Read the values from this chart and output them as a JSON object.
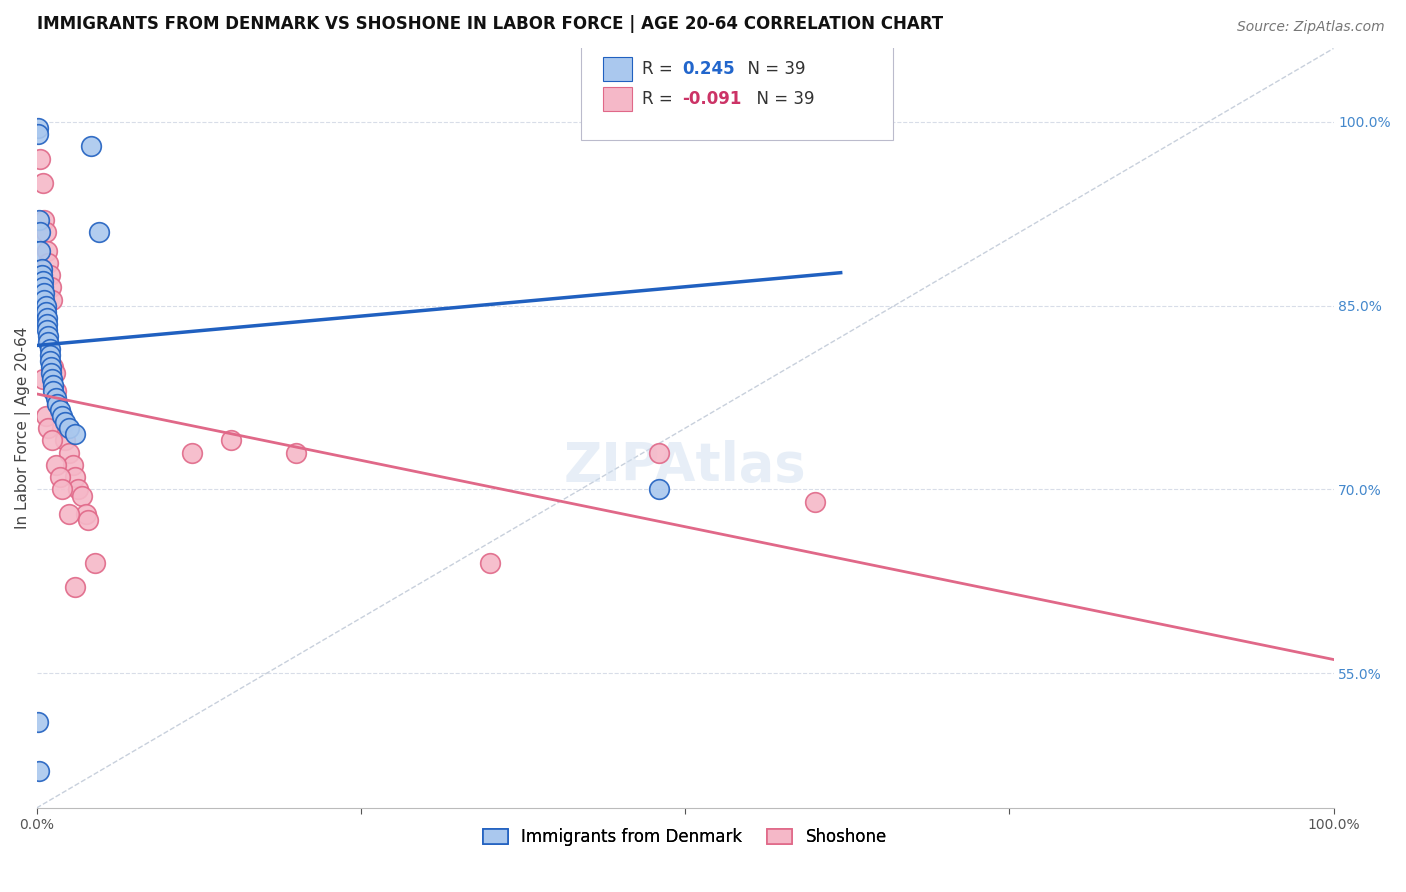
{
  "title": "IMMIGRANTS FROM DENMARK VS SHOSHONE IN LABOR FORCE | AGE 20-64 CORRELATION CHART",
  "source": "Source: ZipAtlas.com",
  "ylabel": "In Labor Force | Age 20-64",
  "xlim": [
    0.0,
    1.0
  ],
  "ylim": [
    0.44,
    1.06
  ],
  "ytick_positions": [
    1.0,
    0.85,
    0.7,
    0.55
  ],
  "ytick_labels": [
    "100.0%",
    "85.0%",
    "70.0%",
    "55.0%"
  ],
  "denmark_R": 0.245,
  "denmark_N": 39,
  "shoshone_R": -0.091,
  "shoshone_N": 39,
  "denmark_color": "#aac8ee",
  "shoshone_color": "#f5b8c8",
  "denmark_line_color": "#2060c0",
  "shoshone_line_color": "#e06888",
  "diagonal_color": "#c8d0dc",
  "background_color": "#ffffff",
  "grid_color": "#d8dde8",
  "denmark_x": [
    0.001,
    0.001,
    0.002,
    0.003,
    0.003,
    0.004,
    0.004,
    0.005,
    0.005,
    0.006,
    0.006,
    0.007,
    0.007,
    0.008,
    0.008,
    0.008,
    0.009,
    0.009,
    0.01,
    0.01,
    0.01,
    0.011,
    0.011,
    0.012,
    0.013,
    0.013,
    0.015,
    0.016,
    0.018,
    0.02,
    0.022,
    0.025,
    0.03,
    0.042,
    0.048,
    0.48,
    0.62,
    0.001,
    0.002
  ],
  "denmark_y": [
    0.995,
    0.99,
    0.92,
    0.91,
    0.895,
    0.88,
    0.875,
    0.87,
    0.865,
    0.86,
    0.855,
    0.85,
    0.845,
    0.84,
    0.835,
    0.83,
    0.825,
    0.82,
    0.815,
    0.81,
    0.805,
    0.8,
    0.795,
    0.79,
    0.785,
    0.78,
    0.775,
    0.77,
    0.765,
    0.76,
    0.755,
    0.75,
    0.745,
    0.98,
    0.91,
    0.7,
    1.0,
    0.51,
    0.47
  ],
  "shoshone_x": [
    0.003,
    0.005,
    0.006,
    0.007,
    0.008,
    0.009,
    0.01,
    0.011,
    0.012,
    0.013,
    0.014,
    0.015,
    0.016,
    0.018,
    0.02,
    0.022,
    0.025,
    0.028,
    0.03,
    0.032,
    0.035,
    0.038,
    0.04,
    0.045,
    0.12,
    0.15,
    0.2,
    0.35,
    0.48,
    0.6,
    0.005,
    0.007,
    0.009,
    0.012,
    0.015,
    0.018,
    0.02,
    0.025,
    0.03
  ],
  "shoshone_y": [
    0.97,
    0.95,
    0.92,
    0.91,
    0.895,
    0.885,
    0.875,
    0.865,
    0.855,
    0.8,
    0.795,
    0.78,
    0.77,
    0.76,
    0.75,
    0.74,
    0.73,
    0.72,
    0.71,
    0.7,
    0.695,
    0.68,
    0.675,
    0.64,
    0.73,
    0.74,
    0.73,
    0.64,
    0.73,
    0.69,
    0.79,
    0.76,
    0.75,
    0.74,
    0.72,
    0.71,
    0.7,
    0.68,
    0.62
  ],
  "title_fontsize": 12,
  "axis_label_fontsize": 11,
  "tick_fontsize": 10,
  "legend_fontsize": 12,
  "source_fontsize": 10
}
